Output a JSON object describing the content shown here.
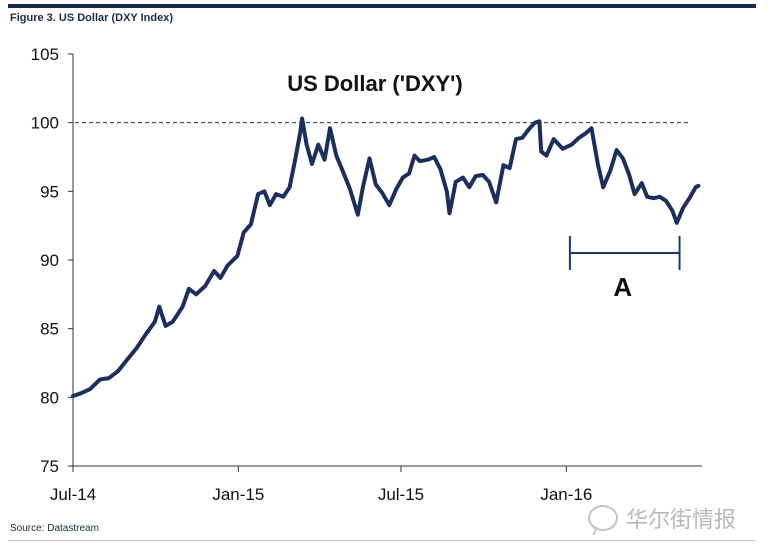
{
  "figure_caption": "Figure 3. US Dollar (DXY Index)",
  "source": "Source: Datastream",
  "watermark_text": "华尔街情报",
  "watermark_icon": "wechat-icon",
  "colors": {
    "series": "#1b2f5e",
    "reference_line": "#1b2f5e",
    "top_rule": "#1b2a4a",
    "watermark": "#b9b9b9"
  },
  "chart_data": {
    "type": "line",
    "title": "US Dollar ('DXY')",
    "xlabel": "",
    "ylabel": "",
    "ylim": [
      75,
      105
    ],
    "xlim": [
      "2014-07-01",
      "2016-05-31"
    ],
    "y_ticks": [
      75,
      80,
      85,
      90,
      95,
      100,
      105
    ],
    "x_ticks": [
      {
        "label": "Jul-14",
        "date": "2014-07-01"
      },
      {
        "label": "Jan-15",
        "date": "2015-01-01"
      },
      {
        "label": "Jul-15",
        "date": "2015-07-01"
      },
      {
        "label": "Jan-16",
        "date": "2016-01-01"
      }
    ],
    "reference_line": {
      "y": 100,
      "style": "dashed"
    },
    "annotation": {
      "label": "A",
      "from": "2016-01-05",
      "to": "2016-05-06"
    },
    "grid": false,
    "series": [
      {
        "points": [
          [
            "2014-07-01",
            80.1
          ],
          [
            "2014-07-10",
            80.3
          ],
          [
            "2014-07-20",
            80.6
          ],
          [
            "2014-07-31",
            81.3
          ],
          [
            "2014-08-10",
            81.4
          ],
          [
            "2014-08-20",
            81.9
          ],
          [
            "2014-08-31",
            82.8
          ],
          [
            "2014-09-10",
            83.6
          ],
          [
            "2014-09-20",
            84.6
          ],
          [
            "2014-09-30",
            85.5
          ],
          [
            "2014-10-05",
            86.6
          ],
          [
            "2014-10-12",
            85.2
          ],
          [
            "2014-10-20",
            85.5
          ],
          [
            "2014-10-31",
            86.6
          ],
          [
            "2014-11-07",
            87.9
          ],
          [
            "2014-11-15",
            87.5
          ],
          [
            "2014-11-25",
            88.1
          ],
          [
            "2014-12-05",
            89.2
          ],
          [
            "2014-12-12",
            88.7
          ],
          [
            "2014-12-20",
            89.6
          ],
          [
            "2014-12-31",
            90.3
          ],
          [
            "2015-01-07",
            92.0
          ],
          [
            "2015-01-15",
            92.6
          ],
          [
            "2015-01-23",
            94.8
          ],
          [
            "2015-01-30",
            95.0
          ],
          [
            "2015-02-05",
            94.0
          ],
          [
            "2015-02-12",
            94.8
          ],
          [
            "2015-02-20",
            94.6
          ],
          [
            "2015-02-27",
            95.3
          ],
          [
            "2015-03-05",
            97.2
          ],
          [
            "2015-03-11",
            99.3
          ],
          [
            "2015-03-13",
            100.3
          ],
          [
            "2015-03-18",
            98.4
          ],
          [
            "2015-03-24",
            97.0
          ],
          [
            "2015-03-31",
            98.4
          ],
          [
            "2015-04-07",
            97.3
          ],
          [
            "2015-04-13",
            99.6
          ],
          [
            "2015-04-20",
            97.6
          ],
          [
            "2015-04-27",
            96.5
          ],
          [
            "2015-05-05",
            95.2
          ],
          [
            "2015-05-14",
            93.3
          ],
          [
            "2015-05-20",
            95.4
          ],
          [
            "2015-05-27",
            97.4
          ],
          [
            "2015-06-03",
            95.5
          ],
          [
            "2015-06-10",
            94.9
          ],
          [
            "2015-06-18",
            94.0
          ],
          [
            "2015-06-26",
            95.2
          ],
          [
            "2015-07-03",
            96.0
          ],
          [
            "2015-07-10",
            96.3
          ],
          [
            "2015-07-16",
            97.6
          ],
          [
            "2015-07-22",
            97.2
          ],
          [
            "2015-07-31",
            97.3
          ],
          [
            "2015-08-07",
            97.5
          ],
          [
            "2015-08-14",
            96.6
          ],
          [
            "2015-08-21",
            95.0
          ],
          [
            "2015-08-24",
            93.4
          ],
          [
            "2015-08-31",
            95.7
          ],
          [
            "2015-09-08",
            96.0
          ],
          [
            "2015-09-15",
            95.3
          ],
          [
            "2015-09-22",
            96.1
          ],
          [
            "2015-09-30",
            96.2
          ],
          [
            "2015-10-07",
            95.7
          ],
          [
            "2015-10-15",
            94.2
          ],
          [
            "2015-10-23",
            96.9
          ],
          [
            "2015-10-30",
            96.7
          ],
          [
            "2015-11-06",
            98.8
          ],
          [
            "2015-11-13",
            98.9
          ],
          [
            "2015-11-20",
            99.5
          ],
          [
            "2015-11-27",
            100.0
          ],
          [
            "2015-12-02",
            100.1
          ],
          [
            "2015-12-04",
            97.9
          ],
          [
            "2015-12-10",
            97.6
          ],
          [
            "2015-12-18",
            98.8
          ],
          [
            "2015-12-28",
            98.1
          ],
          [
            "2016-01-07",
            98.4
          ],
          [
            "2016-01-15",
            98.9
          ],
          [
            "2016-01-22",
            99.2
          ],
          [
            "2016-01-29",
            99.6
          ],
          [
            "2016-02-05",
            97.0
          ],
          [
            "2016-02-11",
            95.3
          ],
          [
            "2016-02-19",
            96.5
          ],
          [
            "2016-02-26",
            98.0
          ],
          [
            "2016-03-04",
            97.4
          ],
          [
            "2016-03-11",
            96.2
          ],
          [
            "2016-03-17",
            94.8
          ],
          [
            "2016-03-25",
            95.6
          ],
          [
            "2016-03-31",
            94.6
          ],
          [
            "2016-04-07",
            94.5
          ],
          [
            "2016-04-14",
            94.6
          ],
          [
            "2016-04-21",
            94.3
          ],
          [
            "2016-04-28",
            93.6
          ],
          [
            "2016-05-03",
            92.7
          ],
          [
            "2016-05-10",
            93.8
          ],
          [
            "2016-05-17",
            94.5
          ],
          [
            "2016-05-24",
            95.3
          ],
          [
            "2016-05-27",
            95.4
          ]
        ]
      }
    ]
  }
}
